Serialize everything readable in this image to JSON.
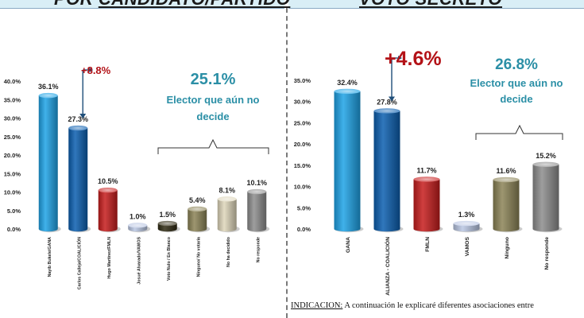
{
  "header": {
    "left_title_a": "POR",
    "left_title_b": "CANDIDATO/PARTIDO",
    "right_title": "VOTO SECRETO"
  },
  "indicacion": {
    "label": "INDICACION:",
    "text": " A continuación le explicaré diferentes asociaciones entre"
  },
  "colors": {
    "light_blue": "#1ea3e6",
    "dark_blue": "#0c5fb0",
    "red": "#c71d1d",
    "lavender": "#b9c6e3",
    "olive_dark": "#2f2a12",
    "olive": "#8c8457",
    "cream": "#ded6ba",
    "gray": "#8d8d8d",
    "teal_text": "#2b8fa6",
    "red_text": "#b31217"
  },
  "chart_data": [
    {
      "type": "bar",
      "categories": [
        "Nayib Bukele/GANA",
        "Carlos Calleja/COALICIÓN",
        "Hugo Martínez/FMLN",
        "Josué Alvarado/VAMOS",
        "Voto Nulo / En Blanco",
        "Ninguno/ No votaría",
        "No ha decidido",
        "No responde"
      ],
      "values": [
        36.1,
        27.3,
        10.5,
        1.0,
        1.5,
        5.4,
        8.1,
        10.1
      ],
      "value_labels": [
        "36.1%",
        "27.3%",
        "10.5%",
        "1.0%",
        "1.5%",
        "5.4%",
        "8.1%",
        "10.1%"
      ],
      "bar_colors": [
        "#1ea3e6",
        "#0c5fb0",
        "#c71d1d",
        "#b9c6e3",
        "#2f2a12",
        "#8c8457",
        "#ded6ba",
        "#8d8d8d"
      ],
      "ylim": [
        0,
        40
      ],
      "yticks": [
        "0.0%",
        "5.0%",
        "10.0%",
        "15.0%",
        "20.0%",
        "25.0%",
        "30.0%",
        "35.0%",
        "40.0%"
      ],
      "annotations": {
        "difference": "+8.8%",
        "undecided_pct": "25.1%",
        "undecided_line1": "Elector que aún no",
        "undecided_line2": "decide"
      }
    },
    {
      "type": "bar",
      "categories": [
        "GANA",
        "ALIANZA - COALICIÓN",
        "FMLN",
        "VAMOS",
        "Ninguno",
        "No responde"
      ],
      "values": [
        32.4,
        27.8,
        11.7,
        1.3,
        11.6,
        15.2
      ],
      "value_labels": [
        "32.4%",
        "27.8%",
        "11.7%",
        "1.3%",
        "11.6%",
        "15.2%"
      ],
      "bar_colors": [
        "#1ea3e6",
        "#0c5fb0",
        "#c71d1d",
        "#b9c6e3",
        "#8c8457",
        "#8d8d8d"
      ],
      "ylim": [
        0,
        35
      ],
      "yticks": [
        "0.0%",
        "5.0%",
        "10.0%",
        "15.0%",
        "20.0%",
        "25.0%",
        "30.0%",
        "35.0%"
      ],
      "annotations": {
        "difference": "+4.6%",
        "undecided_pct": "26.8%",
        "undecided_line1": "Elector que aún no",
        "undecided_line2": "decide"
      }
    }
  ]
}
